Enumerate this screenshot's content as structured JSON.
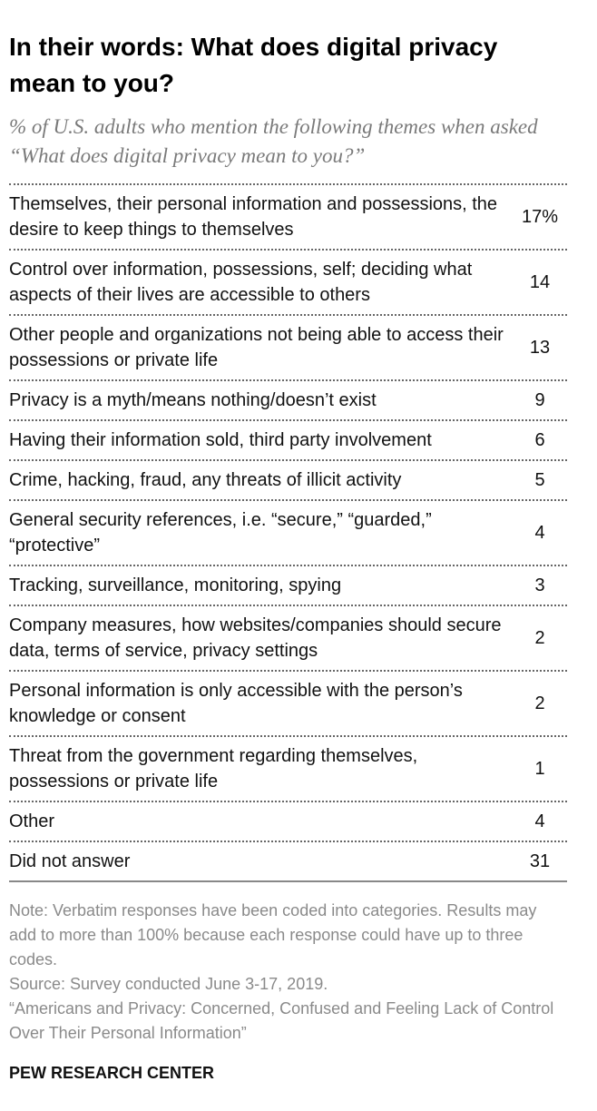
{
  "chart_data": {
    "type": "table",
    "title": "In their words: What does digital privacy mean to you?",
    "subtitle": "% of U.S. adults who mention the following themes when asked “What does digital privacy mean to you?”",
    "rows": [
      {
        "label": "Themselves, their personal information and possessions, the desire to keep things to themselves",
        "value": "17%"
      },
      {
        "label": "Control over information, possessions, self; deciding what aspects of their lives are accessible to others",
        "value": "14"
      },
      {
        "label": "Other people and organizations not being able to access their possessions or private life",
        "value": "13"
      },
      {
        "label": "Privacy is a myth/means nothing/doesn’t exist",
        "value": "9"
      },
      {
        "label": "Having their information sold, third party involvement",
        "value": "6"
      },
      {
        "label": "Crime, hacking, fraud, any threats of illicit activity",
        "value": "5"
      },
      {
        "label": "General security references, i.e. “secure,” “guarded,” “protective”",
        "value": "4"
      },
      {
        "label": "Tracking, surveillance, monitoring, spying",
        "value": "3"
      },
      {
        "label": "Company measures, how websites/companies should secure data, terms of service, privacy settings",
        "value": "2"
      },
      {
        "label": "Personal information is only accessible with the person’s knowledge or consent",
        "value": "2"
      },
      {
        "label": "Threat from the government regarding themselves, possessions or private life",
        "value": "1"
      },
      {
        "label": "Other",
        "value": "4"
      },
      {
        "label": "Did not answer",
        "value": "31"
      }
    ]
  },
  "notes": {
    "note": "Note: Verbatim responses have been coded into categories. Results may add to more than 100% because each response could have up to three codes.",
    "source": "Source: Survey conducted June 3-17, 2019.",
    "report": "“Americans and Privacy: Concerned, Confused and Feeling Lack of Control Over Their Personal Information”"
  },
  "brand": "PEW RESEARCH CENTER"
}
